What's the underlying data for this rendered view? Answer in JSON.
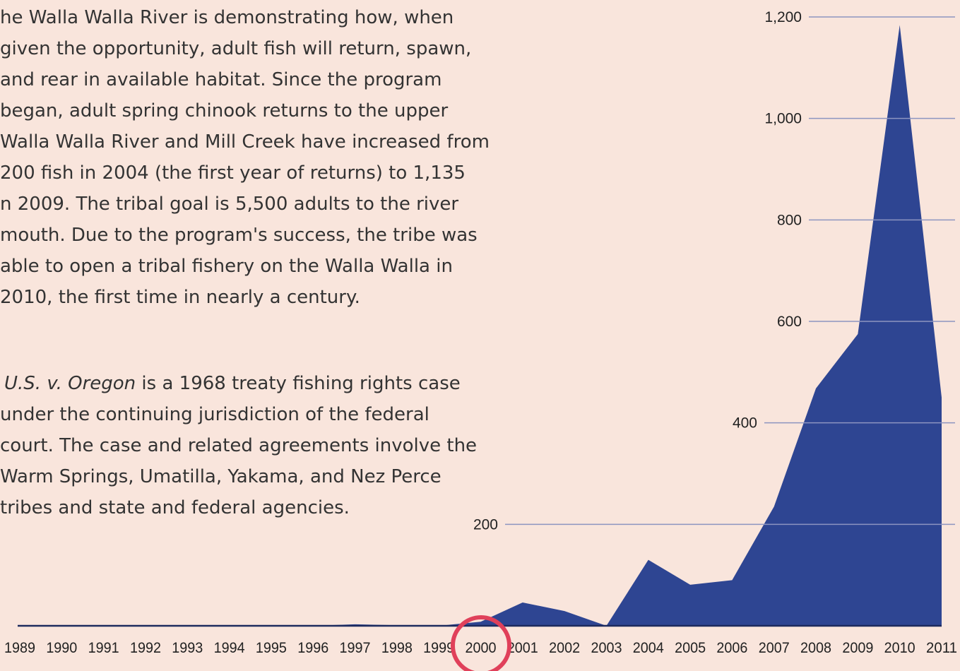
{
  "paragraphs": [
    [
      "he Walla Walla River is demonstrating how, when",
      "given the opportunity, adult fish will return, spawn,",
      "and rear in available habitat. Since the program",
      "began, adult spring chinook returns to the upper",
      "Walla Walla River and Mill Creek have increased from",
      "200 fish in 2004 (the first year of returns) to 1,135",
      "n 2009. The tribal goal is 5,500 adults to the river",
      "mouth. Due to the program's success, the tribe was",
      "able to open a tribal fishery on the Walla Walla in",
      "2010, the first time in nearly a century."
    ]
  ],
  "note": {
    "italic": "U.S. v. Oregon",
    "rest": " is a 1968 treaty fishing rights case",
    "lines": [
      "under the continuing jurisdiction of the federal",
      "court. The case and related agreements involve the",
      "Warm Springs, Umatilla, Yakama, and Nez Perce",
      "tribes and state and federal agencies."
    ]
  },
  "chart_data": {
    "type": "area",
    "categories": [
      "1989",
      "1990",
      "1991",
      "1992",
      "1993",
      "1994",
      "1995",
      "1996",
      "1997",
      "1998",
      "1999",
      "2000",
      "2001",
      "2002",
      "2003",
      "2004",
      "2005",
      "2006",
      "2007",
      "2008",
      "2009",
      "2010",
      "2011"
    ],
    "values": [
      0,
      0,
      0,
      0,
      0,
      0,
      0,
      0,
      3,
      1,
      0,
      8,
      46,
      29,
      0,
      130,
      81,
      90,
      235,
      468,
      575,
      1184,
      450
    ],
    "color": "#2e4592",
    "ylim": [
      0,
      1200
    ],
    "yticks": [
      200,
      400,
      600,
      800,
      {
        "value": 1000,
        "label": "1,000"
      },
      {
        "value": 1200,
        "label": "1,200"
      }
    ],
    "grid": true
  }
}
